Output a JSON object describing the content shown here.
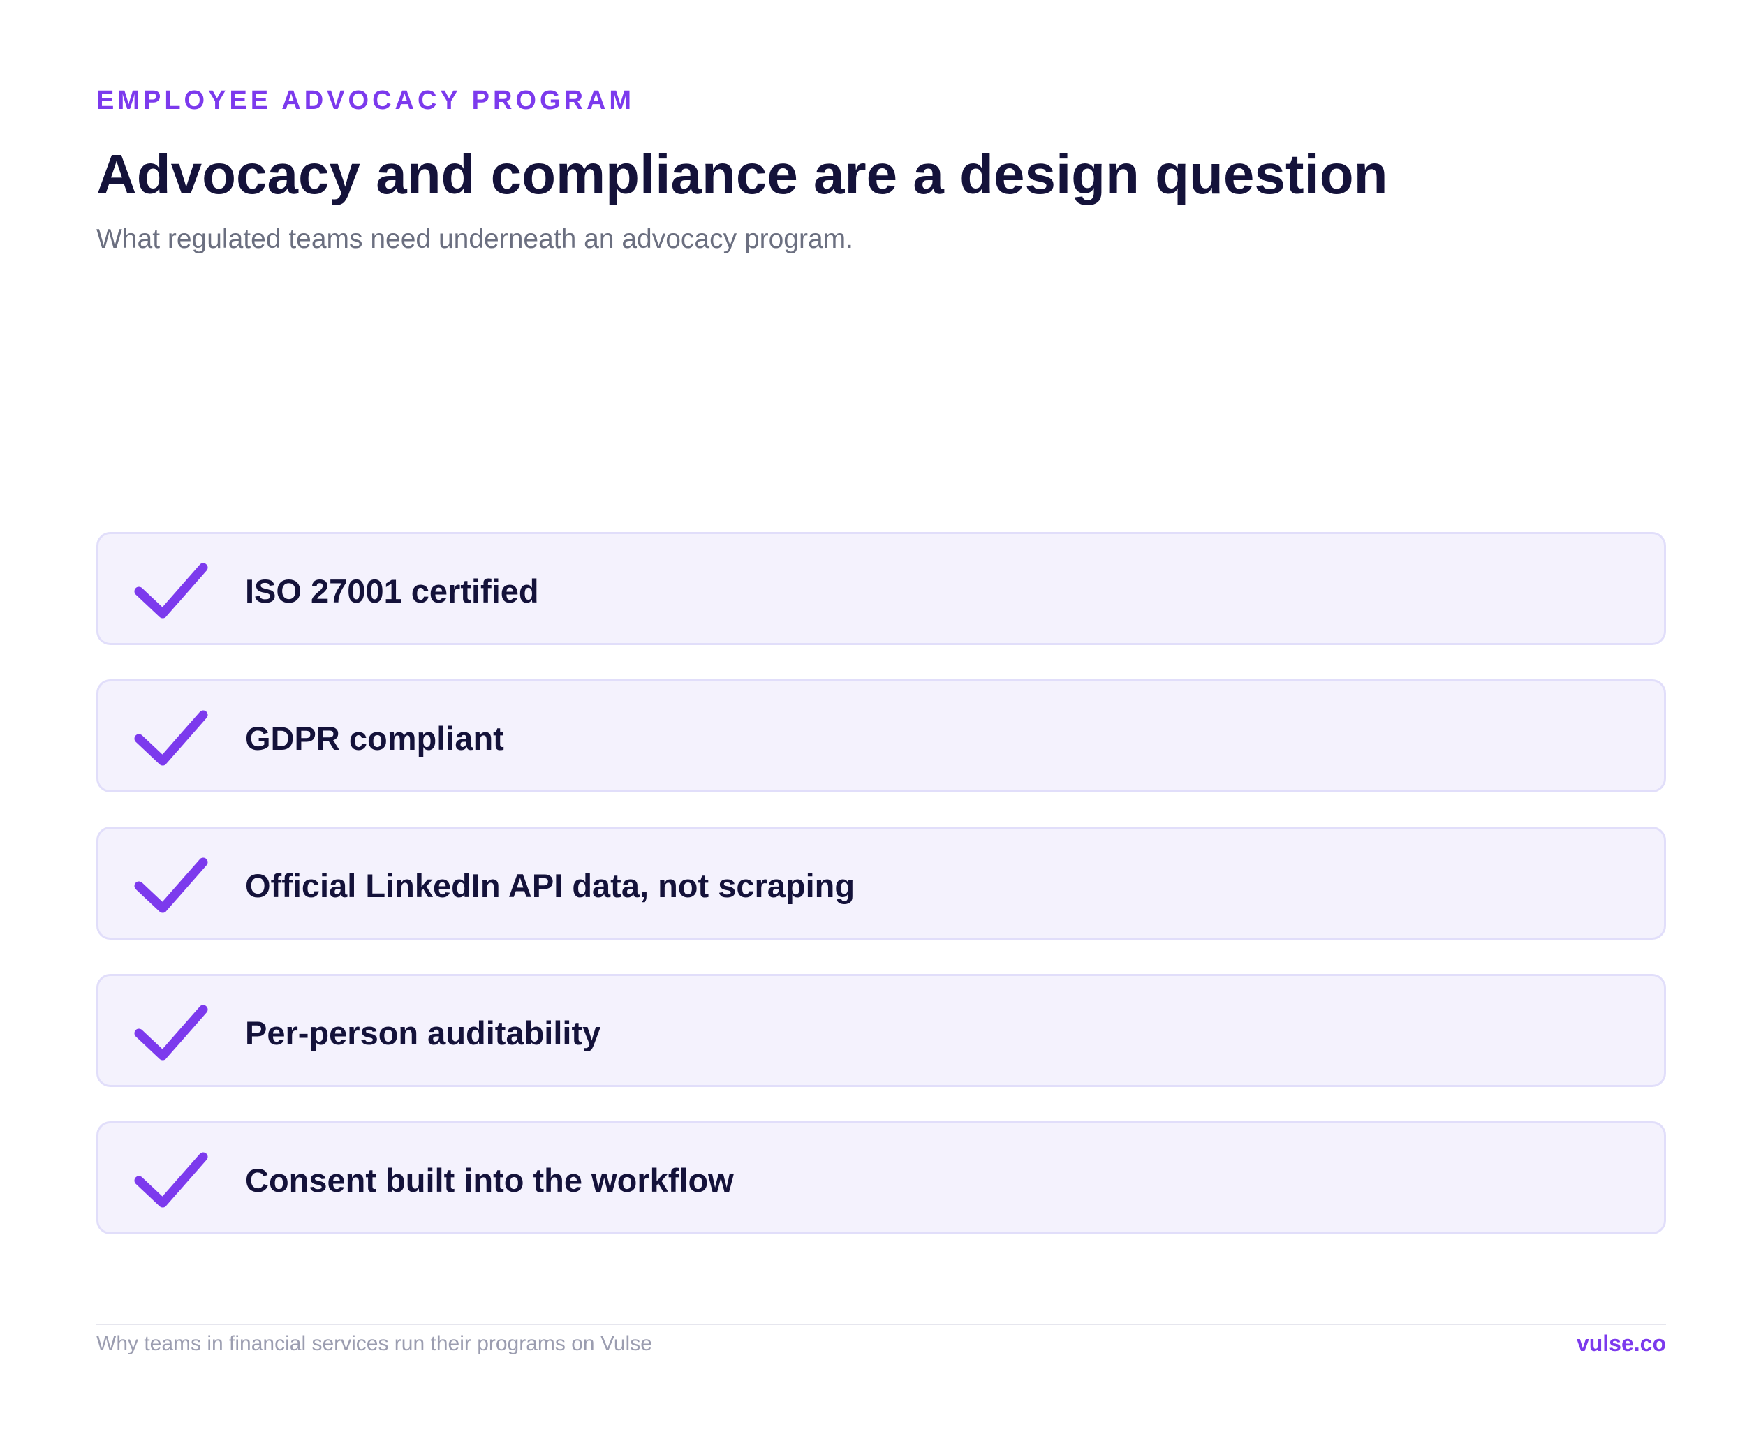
{
  "header": {
    "eyebrow": "EMPLOYEE ADVOCACY PROGRAM",
    "title": "Advocacy and compliance are a design question",
    "subtitle": "What regulated teams need underneath an advocacy program."
  },
  "checklist": {
    "icon": "check-icon",
    "items": [
      {
        "label": "ISO 27001 certified"
      },
      {
        "label": "GDPR compliant"
      },
      {
        "label": "Official LinkedIn API data, not scraping"
      },
      {
        "label": "Per-person auditability"
      },
      {
        "label": "Consent built into the workflow"
      }
    ]
  },
  "footer": {
    "tagline": "Why teams in financial services run their programs on Vulse",
    "brand_link": "vulse.co"
  },
  "colors": {
    "accent": "#7c3aed",
    "heading": "#14123a",
    "muted": "#6b6f80",
    "card_bg": "#f4f2fd",
    "card_border": "#e1defa"
  }
}
